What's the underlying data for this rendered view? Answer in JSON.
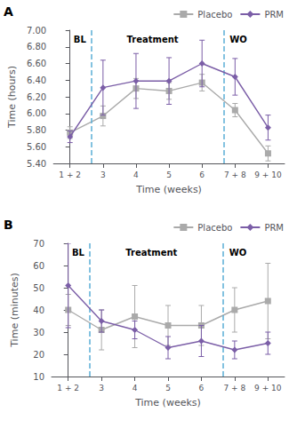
{
  "chart_data": [
    {
      "type": "line",
      "panel_label": "A",
      "xlabel": "Time (weeks)",
      "ylabel": "Time (hours)",
      "categories": [
        "1 + 2",
        "3",
        "4",
        "5",
        "6",
        "7 + 8",
        "9 + 10"
      ],
      "ylim": [
        5.4,
        7.0
      ],
      "yticks": [
        {
          "value": 5.4,
          "label": "5.40"
        },
        {
          "value": 5.6,
          "label": "5.60"
        },
        {
          "value": 5.8,
          "label": "5.80"
        },
        {
          "value": 6.0,
          "label": "6.00"
        },
        {
          "value": 6.2,
          "label": "6.20"
        },
        {
          "value": 6.4,
          "label": "6.40"
        },
        {
          "value": 6.6,
          "label": "6.60"
        },
        {
          "value": 6.8,
          "label": "6.80"
        },
        {
          "value": 7.0,
          "label": "7.00"
        }
      ],
      "grid": false,
      "legend": "upper right",
      "series": [
        {
          "name": "Placebo",
          "color": "#AAAAAA",
          "marker": "square",
          "values": [
            5.77,
            5.97,
            6.3,
            6.27,
            6.37,
            6.04,
            5.52
          ],
          "errors": [
            0.07,
            0.12,
            0.12,
            0.1,
            0.1,
            0.08,
            0.09
          ]
        },
        {
          "name": "PRM",
          "color": "#7B5EA7",
          "marker": "diamond",
          "values": [
            5.72,
            6.31,
            6.39,
            6.39,
            6.6,
            6.44,
            5.83
          ],
          "errors": [
            0.07,
            0.33,
            0.33,
            0.28,
            0.28,
            0.22,
            0.15
          ]
        }
      ],
      "vlines": {
        "x": [
          0.65,
          4.65
        ],
        "color": "#5BAFD6",
        "line_style": "dashed"
      },
      "annotations": [
        {
          "text": "BL",
          "x": 0.3
        },
        {
          "text": "Treatment",
          "x": 2.5
        },
        {
          "text": "WO",
          "x": 5.1
        }
      ]
    },
    {
      "type": "line",
      "panel_label": "B",
      "xlabel": "Time (weeks)",
      "ylabel": "Time (minutes)",
      "categories": [
        "1 + 2",
        "3",
        "4",
        "5",
        "6",
        "7 + 8",
        "9 + 10"
      ],
      "ylim": [
        10,
        70
      ],
      "yticks": [
        10,
        20,
        30,
        40,
        50,
        60,
        70
      ],
      "grid": false,
      "legend": "upper right",
      "series": [
        {
          "name": "Placebo",
          "color": "#AAAAAA",
          "marker": "square",
          "values": [
            40,
            31,
            37,
            33,
            33,
            40,
            44
          ],
          "errors": [
            7,
            9,
            14,
            9,
            9,
            10,
            17
          ]
        },
        {
          "name": "PRM",
          "color": "#7B5EA7",
          "marker": "diamond",
          "values": [
            51,
            35,
            31,
            23,
            26,
            22,
            25
          ],
          "errors": [
            19,
            5,
            4,
            5,
            7,
            4,
            5
          ]
        }
      ],
      "vlines": {
        "x": [
          0.65,
          4.65
        ],
        "color": "#5BAFD6",
        "line_style": "dashed"
      },
      "annotations": [
        {
          "text": "BL",
          "x": 0.3
        },
        {
          "text": "Treatment",
          "x": 2.5
        },
        {
          "text": "WO",
          "x": 5.1
        }
      ]
    }
  ]
}
